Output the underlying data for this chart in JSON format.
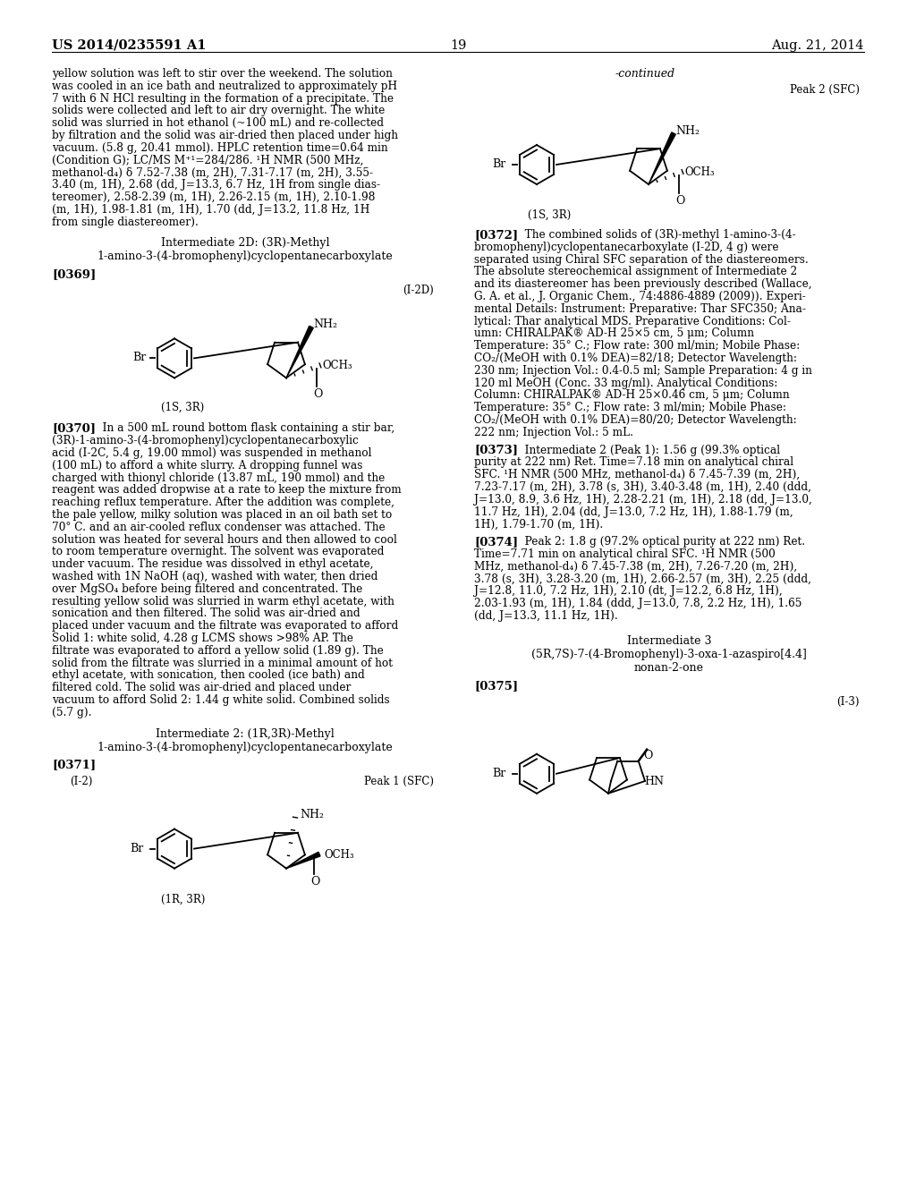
{
  "background_color": "#ffffff",
  "page_header_left": "US 2014/0235591 A1",
  "page_header_right": "Aug. 21, 2014",
  "page_number": "19",
  "left_col_lines": [
    "yellow solution was left to stir over the weekend. The solution",
    "was cooled in an ice bath and neutralized to approximately pH",
    "7 with 6 N HCl resulting in the formation of a precipitate. The",
    "solids were collected and left to air dry overnight. The white",
    "solid was slurried in hot ethanol (~100 mL) and re-collected",
    "by filtration and the solid was air-dried then placed under high",
    "vacuum. (5.8 g, 20.41 mmol). HPLC retention time=0.64 min",
    "(Condition G); LC/MS M⁺¹=284/286. ¹H NMR (500 MHz,",
    "methanol-d₄) δ 7.52-7.38 (m, 2H), 7.31-7.17 (m, 2H), 3.55-",
    "3.40 (m, 1H), 2.68 (dd, J=13.3, 6.7 Hz, 1H from single dias-",
    "tereomer), 2.58-2.39 (m, 1H), 2.26-2.15 (m, 1H), 2.10-1.98",
    "(m, 1H), 1.98-1.81 (m, 1H), 1.70 (dd, J=13.2, 11.8 Hz, 1H",
    "from single diastereomer)."
  ],
  "int2d_title1": "Intermediate 2D: (3R)-Methyl",
  "int2d_title2": "1-amino-3-(4-bromophenyl)cyclopentanecarboxylate",
  "int2d_label": "[0369]",
  "int2d_tag": "(I-2D)",
  "int2d_stereo": "(1S, 3R)",
  "para_0370_label": "[0370]",
  "para_0370_lines": [
    "   In a 500 mL round bottom flask containing a stir bar,",
    "(3R)-1-amino-3-(4-bromophenyl)cyclopentanecarboxylic",
    "acid (I-2C, 5.4 g, 19.00 mmol) was suspended in methanol",
    "(100 mL) to afford a white slurry. A dropping funnel was",
    "charged with thionyl chloride (13.87 mL, 190 mmol) and the",
    "reagent was added dropwise at a rate to keep the mixture from",
    "reaching reflux temperature. After the addition was complete,",
    "the pale yellow, milky solution was placed in an oil bath set to",
    "70° C. and an air-cooled reflux condenser was attached. The",
    "solution was heated for several hours and then allowed to cool",
    "to room temperature overnight. The solvent was evaporated",
    "under vacuum. The residue was dissolved in ethyl acetate,",
    "washed with 1N NaOH (aq), washed with water, then dried",
    "over MgSO₄ before being filtered and concentrated. The",
    "resulting yellow solid was slurried in warm ethyl acetate, with",
    "sonication and then filtered. The solid was air-dried and",
    "placed under vacuum and the filtrate was evaporated to afford",
    "Solid 1: white solid, 4.28 g LCMS shows >98% AP. The",
    "filtrate was evaporated to afford a yellow solid (1.89 g). The",
    "solid from the filtrate was slurried in a minimal amount of hot",
    "ethyl acetate, with sonication, then cooled (ice bath) and",
    "filtered cold. The solid was air-dried and placed under",
    "vacuum to afford Solid 2: 1.44 g white solid. Combined solids",
    "(5.7 g)."
  ],
  "int2_title1": "Intermediate 2: (1R,3R)-Methyl",
  "int2_title2": "1-amino-3-(4-bromophenyl)cyclopentanecarboxylate",
  "int2_label": "[0371]",
  "int2_tag": "(I-2)",
  "int2_peak": "Peak 1 (SFC)",
  "int2_stereo": "(1R, 3R)",
  "right_continued": "-continued",
  "right_peak2": "Peak 2 (SFC)",
  "right_stereo": "(1S, 3R)",
  "para_0372_label": "[0372]",
  "para_0372_lines": [
    "   The combined solids of (3R)-methyl 1-amino-3-(4-",
    "bromophenyl)cyclopentanecarboxylate (I-2D, 4 g) were",
    "separated using Chiral SFC separation of the diastereomers.",
    "The absolute stereochemical assignment of Intermediate 2",
    "and its diastereomer has been previously described (Wallace,",
    "G. A. et al., J. Organic Chem., 74:4886-4889 (2009)). Experi-",
    "mental Details: Instrument: Preparative: Thar SFC350; Ana-",
    "lytical: Thar analytical MDS. Preparative Conditions: Col-",
    "umn: CHIRALPAK® AD-H 25×5 cm, 5 μm; Column",
    "Temperature: 35° C.; Flow rate: 300 ml/min; Mobile Phase:",
    "CO₂/(MeOH with 0.1% DEA)=82/18; Detector Wavelength:",
    "230 nm; Injection Vol.: 0.4-0.5 ml; Sample Preparation: 4 g in",
    "120 ml MeOH (Conc. 33 mg/ml). Analytical Conditions:",
    "Column: CHIRALPAK® AD-H 25×0.46 cm, 5 μm; Column",
    "Temperature: 35° C.; Flow rate: 3 ml/min; Mobile Phase:",
    "CO₂/(MeOH with 0.1% DEA)=80/20; Detector Wavelength:",
    "222 nm; Injection Vol.: 5 mL."
  ],
  "para_0373_label": "[0373]",
  "para_0373_lines": [
    "   Intermediate 2 (Peak 1): 1.56 g (99.3% optical",
    "purity at 222 nm) Ret. Time=7.18 min on analytical chiral",
    "SFC. ¹H NMR (500 MHz, methanol-d₄) δ 7.45-7.39 (m, 2H),",
    "7.23-7.17 (m, 2H), 3.78 (s, 3H), 3.40-3.48 (m, 1H), 2.40 (ddd,",
    "J=13.0, 8.9, 3.6 Hz, 1H), 2.28-2.21 (m, 1H), 2.18 (dd, J=13.0,",
    "11.7 Hz, 1H), 2.04 (dd, J=13.0, 7.2 Hz, 1H), 1.88-1.79 (m,",
    "1H), 1.79-1.70 (m, 1H)."
  ],
  "para_0374_label": "[0374]",
  "para_0374_lines": [
    "   Peak 2: 1.8 g (97.2% optical purity at 222 nm) Ret.",
    "Time=7.71 min on analytical chiral SFC. ¹H NMR (500",
    "MHz, methanol-d₄) δ 7.45-7.38 (m, 2H), 7.26-7.20 (m, 2H),",
    "3.78 (s, 3H), 3.28-3.20 (m, 1H), 2.66-2.57 (m, 3H), 2.25 (ddd,",
    "J=12.8, 11.0, 7.2 Hz, 1H), 2.10 (dt, J=12.2, 6.8 Hz, 1H),",
    "2.03-1.93 (m, 1H), 1.84 (ddd, J=13.0, 7.8, 2.2 Hz, 1H), 1.65",
    "(dd, J=13.3, 11.1 Hz, 1H)."
  ],
  "int3_title1": "Intermediate 3",
  "int3_title2": "(5R,7S)-7-(4-Bromophenyl)-3-oxa-1-azaspiro[4.4]",
  "int3_title3": "nonan-2-one",
  "int3_label": "[0375]",
  "int3_tag": "(I-3)"
}
